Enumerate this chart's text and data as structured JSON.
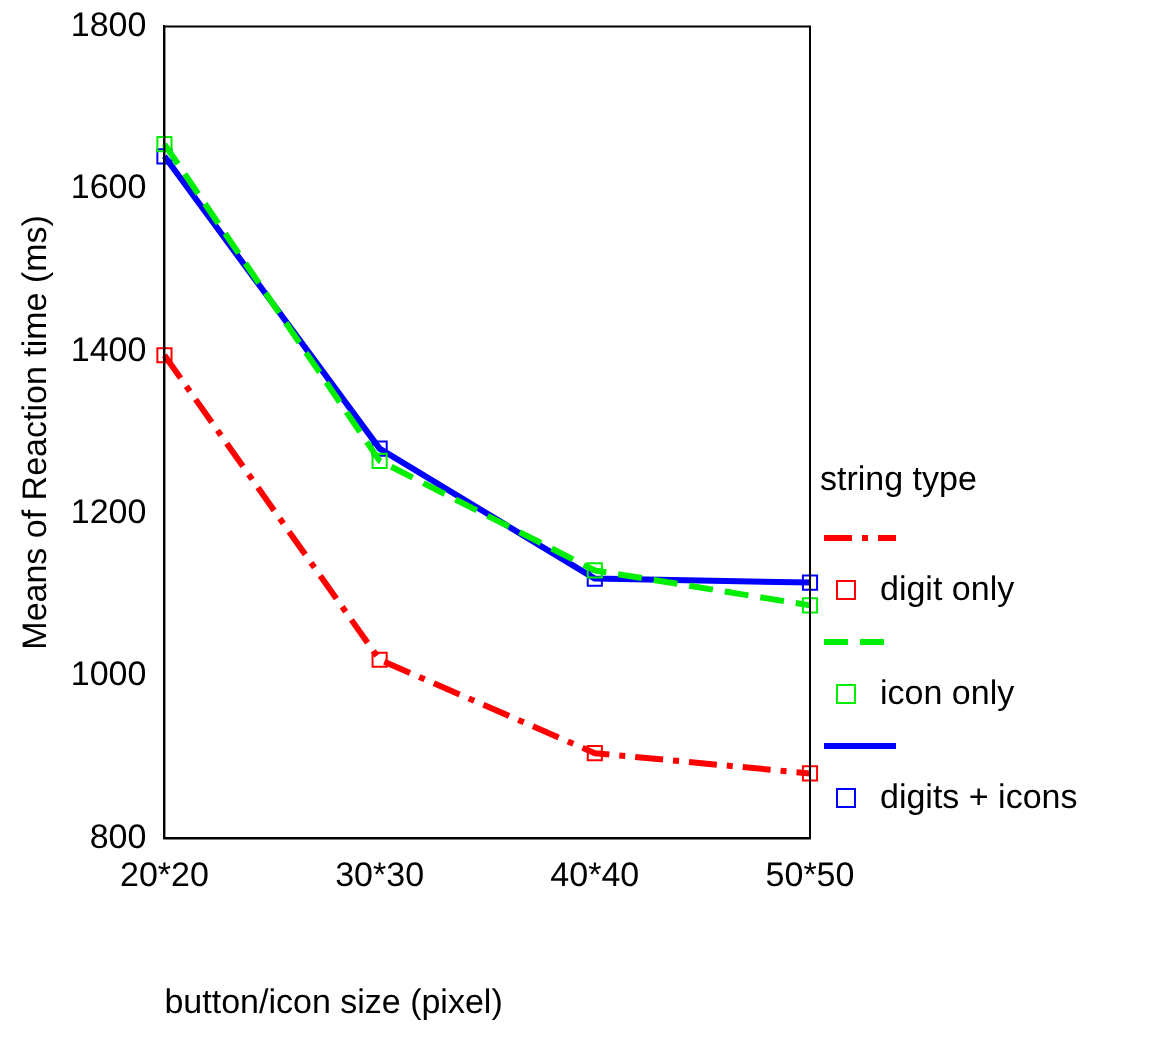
{
  "chart_data": {
    "type": "line",
    "xlabel": "button/icon size (pixel)",
    "ylabel": "Means of Reaction time (ms)",
    "legend_title": "string type",
    "categories": [
      "20*20",
      "30*30",
      "40*40",
      "50*50"
    ],
    "series": [
      {
        "name": "digit only",
        "color": "#ff0000",
        "line_style": "dashdot",
        "values": [
          1395,
          1020,
          905,
          880
        ]
      },
      {
        "name": "icon only",
        "color": "#00ee00",
        "line_style": "dashed",
        "values": [
          1655,
          1265,
          1130,
          1087
        ]
      },
      {
        "name": "digits + icons",
        "color": "#0000ff",
        "line_style": "solid",
        "values": [
          1640,
          1280,
          1120,
          1115
        ]
      }
    ],
    "ylim": [
      800,
      1800
    ],
    "yticks": [
      800,
      1000,
      1200,
      1400,
      1600,
      1800
    ],
    "grid": false,
    "legend": "right",
    "marker": "square"
  }
}
